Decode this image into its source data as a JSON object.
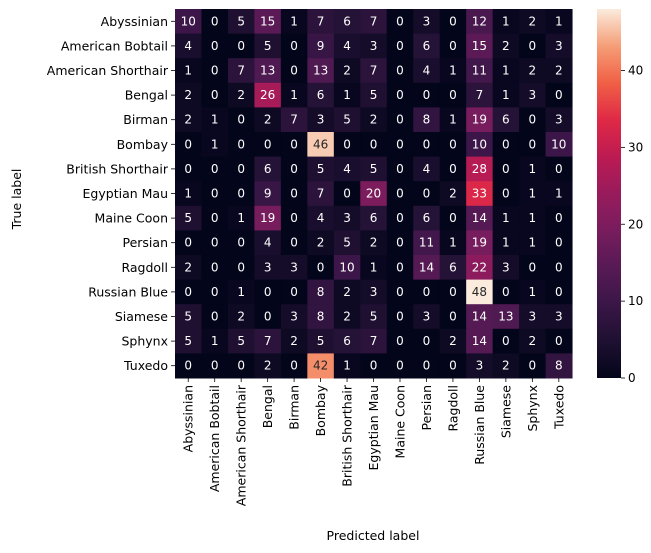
{
  "chart_data": {
    "type": "heatmap",
    "title": "",
    "xlabel": "Predicted label",
    "ylabel": "True label",
    "categories": [
      "Abyssinian",
      "American Bobtail",
      "American Shorthair",
      "Bengal",
      "Birman",
      "Bombay",
      "British Shorthair",
      "Egyptian Mau",
      "Maine Coon",
      "Persian",
      "Ragdoll",
      "Russian Blue",
      "Siamese",
      "Sphynx",
      "Tuxedo"
    ],
    "matrix": [
      [
        10,
        0,
        5,
        15,
        1,
        7,
        6,
        7,
        0,
        3,
        0,
        12,
        1,
        2,
        1
      ],
      [
        4,
        0,
        0,
        5,
        0,
        9,
        4,
        3,
        0,
        6,
        0,
        15,
        2,
        0,
        3
      ],
      [
        1,
        0,
        7,
        13,
        0,
        13,
        2,
        7,
        0,
        4,
        1,
        11,
        1,
        2,
        2
      ],
      [
        2,
        0,
        2,
        26,
        1,
        6,
        1,
        5,
        0,
        0,
        0,
        7,
        1,
        3,
        0
      ],
      [
        2,
        1,
        0,
        2,
        7,
        3,
        5,
        2,
        0,
        8,
        1,
        19,
        6,
        0,
        3
      ],
      [
        0,
        1,
        0,
        0,
        0,
        46,
        0,
        0,
        0,
        0,
        0,
        10,
        0,
        0,
        10
      ],
      [
        0,
        0,
        0,
        6,
        0,
        5,
        4,
        5,
        0,
        4,
        0,
        28,
        0,
        1,
        0
      ],
      [
        1,
        0,
        0,
        9,
        0,
        7,
        0,
        20,
        0,
        0,
        2,
        33,
        0,
        1,
        1
      ],
      [
        5,
        0,
        1,
        19,
        0,
        4,
        3,
        6,
        0,
        6,
        0,
        14,
        1,
        1,
        0
      ],
      [
        0,
        0,
        0,
        4,
        0,
        2,
        5,
        2,
        0,
        11,
        1,
        19,
        1,
        1,
        0
      ],
      [
        2,
        0,
        0,
        3,
        3,
        0,
        10,
        1,
        0,
        14,
        6,
        22,
        3,
        0,
        0
      ],
      [
        0,
        0,
        1,
        0,
        0,
        8,
        2,
        3,
        0,
        0,
        0,
        48,
        0,
        1,
        0
      ],
      [
        5,
        0,
        2,
        0,
        3,
        8,
        2,
        5,
        0,
        3,
        0,
        14,
        13,
        3,
        3
      ],
      [
        5,
        1,
        5,
        7,
        2,
        5,
        6,
        7,
        0,
        0,
        2,
        14,
        0,
        2,
        0
      ],
      [
        0,
        0,
        0,
        2,
        0,
        42,
        1,
        0,
        0,
        0,
        0,
        3,
        2,
        0,
        8
      ]
    ],
    "vmin": 0,
    "vmax": 48,
    "colormap": "rocket",
    "colorbar_ticks": [
      0,
      10,
      20,
      30,
      40
    ],
    "grid": false
  }
}
